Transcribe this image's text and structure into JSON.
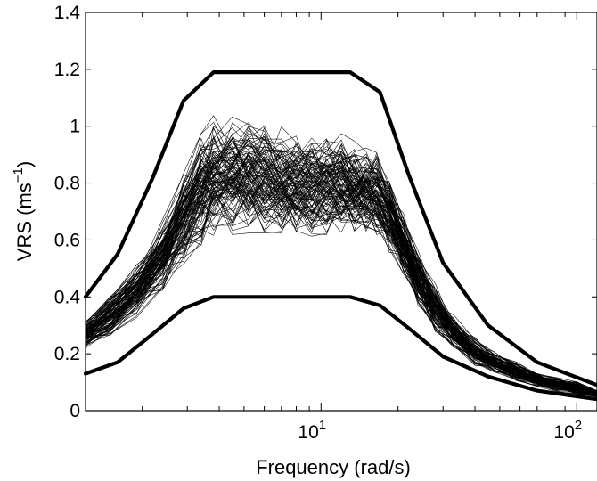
{
  "chart_data": {
    "type": "line",
    "title": "",
    "xlabel": "Frequency (rad/s)",
    "ylabel": {
      "main": "VRS (ms",
      "superscript": "−1",
      "close": ")"
    },
    "x_scale": "log",
    "xlim": [
      1.2,
      120
    ],
    "ylim": [
      0,
      1.4
    ],
    "grid": false,
    "legend": "none",
    "x_ticks": [
      {
        "value": 10,
        "base": "10",
        "exp": "1"
      },
      {
        "value": 100,
        "base": "10",
        "exp": "2"
      }
    ],
    "y_ticks": [
      {
        "value": 0,
        "label": "0"
      },
      {
        "value": 0.2,
        "label": "0.2"
      },
      {
        "value": 0.4,
        "label": "0.4"
      },
      {
        "value": 0.6,
        "label": "0.6"
      },
      {
        "value": 0.8,
        "label": "0.8"
      },
      {
        "value": 1.0,
        "label": "1"
      },
      {
        "value": 1.2,
        "label": "1.2"
      },
      {
        "value": 1.4,
        "label": "1.4"
      }
    ],
    "envelope_frequencies": [
      1.2,
      1.6,
      2.2,
      2.9,
      3.8,
      13,
      17,
      22,
      30,
      45,
      70,
      120
    ],
    "series": [
      {
        "role": "upper-bound",
        "values": [
          0.4,
          0.55,
          0.82,
          1.09,
          1.19,
          1.19,
          1.12,
          0.83,
          0.52,
          0.3,
          0.17,
          0.09
        ],
        "color": "#000000"
      },
      {
        "role": "lower-bound",
        "values": [
          0.13,
          0.17,
          0.27,
          0.36,
          0.4,
          0.4,
          0.37,
          0.29,
          0.19,
          0.12,
          0.07,
          0.04
        ],
        "color": "#000000"
      }
    ],
    "realizations": {
      "count": 110,
      "frequencies": [
        1.2,
        1.5,
        1.9,
        2.4,
        2.9,
        3.4,
        3.8,
        4.5,
        5.2,
        6.0,
        7.0,
        8.0,
        9.2,
        10.5,
        12.0,
        13.5,
        15.0,
        16.5,
        18.5,
        21.0,
        24.0,
        28.0,
        33.0,
        40.0,
        48.0,
        58.0,
        70.0,
        85.0,
        100.0,
        120.0
      ],
      "mean_values": [
        0.27,
        0.34,
        0.43,
        0.55,
        0.68,
        0.78,
        0.83,
        0.84,
        0.83,
        0.82,
        0.81,
        0.8,
        0.8,
        0.8,
        0.8,
        0.79,
        0.78,
        0.77,
        0.7,
        0.59,
        0.47,
        0.36,
        0.28,
        0.21,
        0.17,
        0.14,
        0.11,
        0.09,
        0.08,
        0.06
      ],
      "spread_values": [
        0.04,
        0.06,
        0.08,
        0.1,
        0.13,
        0.16,
        0.17,
        0.17,
        0.16,
        0.16,
        0.15,
        0.15,
        0.14,
        0.14,
        0.14,
        0.13,
        0.12,
        0.12,
        0.11,
        0.09,
        0.08,
        0.07,
        0.05,
        0.04,
        0.03,
        0.03,
        0.02,
        0.02,
        0.02,
        0.01
      ],
      "color": "#000000"
    }
  }
}
